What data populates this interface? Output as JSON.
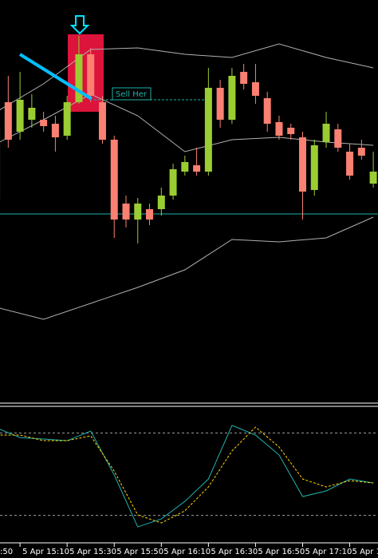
{
  "chart_data": {
    "type": "candlestick",
    "x": [
      10,
      15,
      20,
      25,
      30,
      35,
      40,
      45,
      50,
      55,
      60,
      65,
      70,
      75,
      80,
      85,
      90,
      95,
      100,
      105,
      110,
      115,
      120,
      125,
      130,
      135,
      140,
      145,
      150,
      155,
      160,
      165,
      170
    ],
    "open": [
      250,
      372,
      335,
      350,
      350,
      345,
      330,
      372,
      432,
      372,
      325,
      245,
      225,
      238,
      238,
      255,
      285,
      293,
      285,
      390,
      350,
      410,
      397,
      377,
      347,
      340,
      328,
      262,
      322,
      338,
      310,
      315,
      270
    ],
    "high": [
      350,
      405,
      410,
      382,
      360,
      355,
      380,
      455,
      440,
      380,
      330,
      255,
      252,
      245,
      265,
      295,
      305,
      315,
      415,
      400,
      415,
      420,
      420,
      385,
      355,
      345,
      335,
      325,
      360,
      345,
      320,
      325,
      310
    ],
    "low": [
      245,
      315,
      325,
      340,
      335,
      310,
      325,
      370,
      372,
      320,
      202,
      215,
      195,
      218,
      230,
      250,
      280,
      280,
      280,
      340,
      345,
      388,
      370,
      335,
      325,
      325,
      225,
      255,
      315,
      310,
      275,
      300,
      265
    ],
    "close": [
      340,
      325,
      375,
      365,
      342,
      328,
      372,
      432,
      380,
      325,
      225,
      225,
      245,
      225,
      255,
      288,
      297,
      285,
      390,
      350,
      405,
      395,
      380,
      345,
      330,
      332,
      260,
      318,
      345,
      315,
      280,
      305,
      285
    ],
    "up_color": "#9acd32",
    "down_color": "#fa8072",
    "xlim": [
      11.5,
      172
    ],
    "ylim": [
      -5,
      500
    ],
    "xticks": [
      {
        "value": 0,
        "label": ":50"
      },
      {
        "value": 20,
        "label": "5 Apr 15:10"
      },
      {
        "value": 40,
        "label": "5 Apr 15:30"
      },
      {
        "value": 60,
        "label": "5 Apr 15:50"
      },
      {
        "value": 80,
        "label": "5 Apr 16:10"
      },
      {
        "value": 100,
        "label": "5 Apr 16:30"
      },
      {
        "value": 120,
        "label": "5 Apr 16:50"
      },
      {
        "value": 140,
        "label": "5 Apr 17:10"
      },
      {
        "value": 160,
        "label": "5 Apr 17"
      }
    ],
    "band_x": [
      10,
      30,
      50,
      70,
      90,
      110,
      130,
      150,
      170
    ],
    "bands": [
      {
        "color": "#b0b0b0",
        "values": [
          360,
          395,
          438,
          440,
          432,
          428,
          445,
          428,
          415
        ]
      },
      {
        "color": "#b0b0b0",
        "values": [
          320,
          350,
          382,
          355,
          310,
          325,
          328,
          322,
          318
        ]
      },
      {
        "color": "#b0b0b0",
        "values": [
          115,
          100,
          120,
          140,
          162,
          200,
          197,
          202,
          228
        ]
      }
    ],
    "hline": {
      "value": 232,
      "color": "#20b2aa"
    },
    "annotation": {
      "text": "Sell Her",
      "value": 375,
      "color": "#20b2aa"
    },
    "oscillator": {
      "x": [
        10,
        20,
        30,
        40,
        50,
        60,
        70,
        80,
        90,
        100,
        110,
        120,
        130,
        140,
        150,
        160,
        170
      ],
      "ylim": [
        0,
        100
      ],
      "levels": [
        80,
        20
      ],
      "series": [
        {
          "color": "#20b2aa",
          "dash": false,
          "values": [
            83.7,
            76.7,
            75.6,
            74.4,
            81.4,
            49.4,
            11.6,
            17.4,
            30.2,
            46.5,
            85.5,
            78.5,
            64.0,
            33.7,
            37.8,
            46.5,
            43.6
          ]
        },
        {
          "color": "#ffd700",
          "dash": true,
          "values": [
            78.5,
            78.5,
            74.4,
            74.4,
            77.9,
            52.3,
            20.3,
            14.5,
            23.3,
            40.7,
            66.9,
            84.3,
            69.8,
            46.5,
            40.7,
            45.3,
            43.6
          ]
        }
      ]
    }
  }
}
